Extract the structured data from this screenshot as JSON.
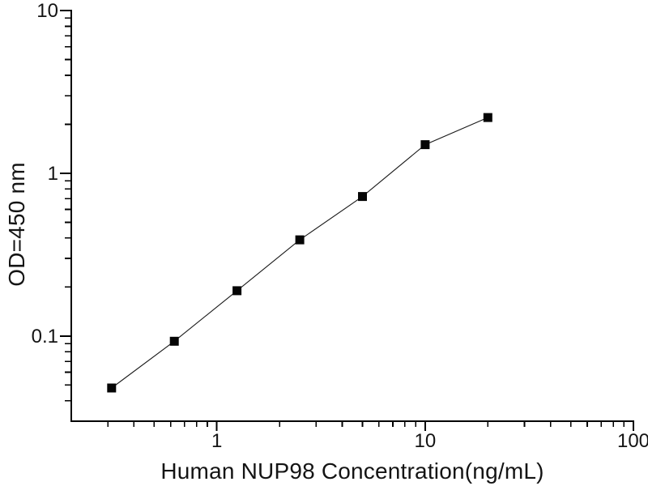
{
  "figure": {
    "background_color": "#ffffff"
  },
  "chart_data": {
    "type": "scatter",
    "title": "",
    "xlabel": "Human NUP98 Concentration(ng/mL)",
    "ylabel": "OD=450 nm",
    "xscale": "log",
    "yscale": "log",
    "xlim": [
      0.2,
      100
    ],
    "ylim": [
      0.03,
      10
    ],
    "x_major_ticks": [
      1,
      10,
      100
    ],
    "x_major_tick_labels": [
      "1",
      "10",
      "100"
    ],
    "y_major_ticks": [
      0.1,
      1,
      10
    ],
    "y_major_tick_labels": [
      "0.1",
      "1",
      "10"
    ],
    "grid": false,
    "legend": "none",
    "axis_color": "#000000",
    "text_color": "#141414",
    "series": [
      {
        "name": "standard-curve",
        "marker": "filled-square",
        "marker_color": "#050505",
        "line_color": "#1a1a1a",
        "x": [
          0.3125,
          0.625,
          1.25,
          2.5,
          5,
          10,
          20
        ],
        "y": [
          0.048,
          0.093,
          0.19,
          0.39,
          0.72,
          1.5,
          2.2
        ]
      }
    ]
  }
}
